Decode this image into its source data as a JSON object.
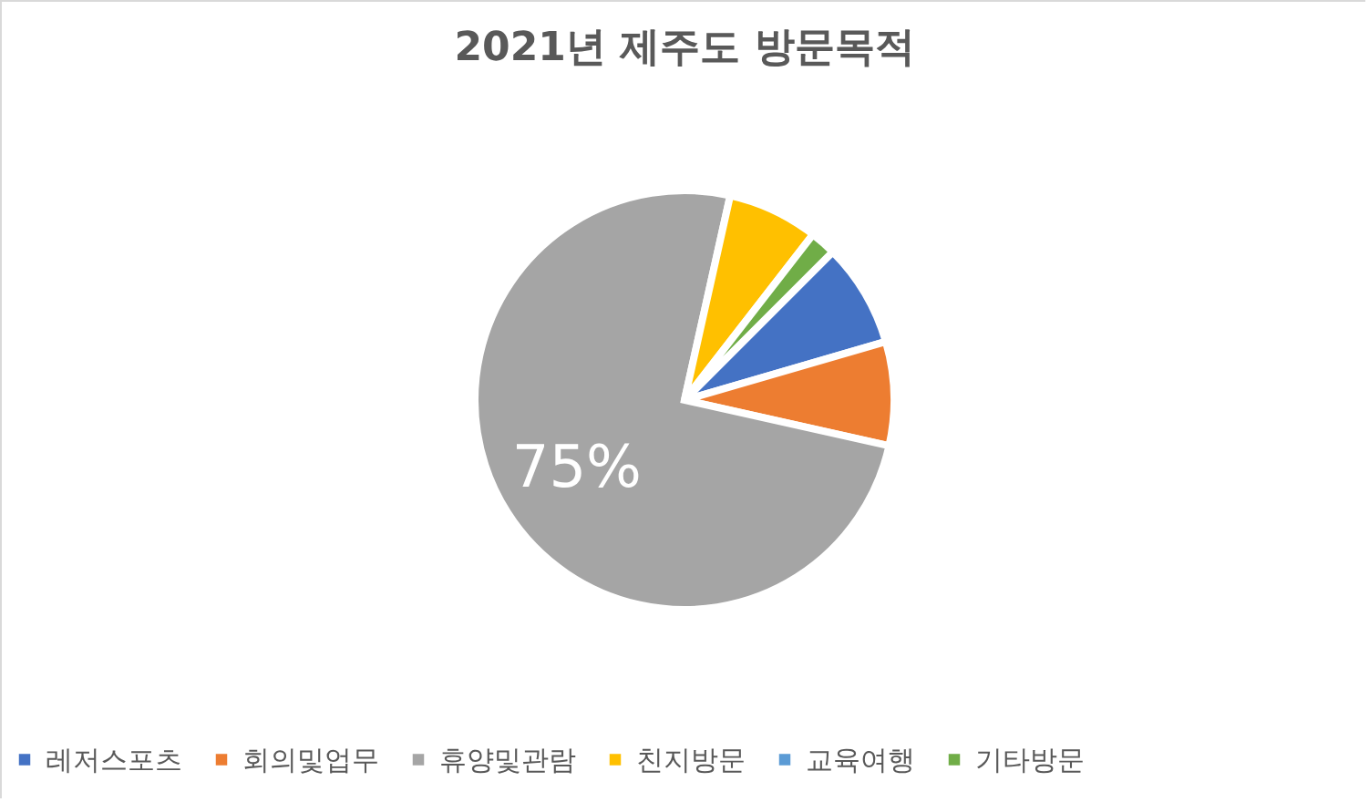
{
  "chart_data": {
    "type": "pie",
    "title": "2021년 제주도 방문목적",
    "categories": [
      "레저스포츠",
      "회의및업무",
      "휴양및관람",
      "친지방문",
      "교육여행",
      "기타방문"
    ],
    "values": [
      8,
      8,
      75,
      7,
      null,
      2
    ],
    "colors": [
      "#4472c4",
      "#ed7d31",
      "#a5a5a5",
      "#ffc000",
      "#5b9bd5",
      "#70ad47"
    ],
    "value_labels": [
      null,
      null,
      "75%",
      null,
      null,
      null
    ],
    "legend": "bottom"
  }
}
